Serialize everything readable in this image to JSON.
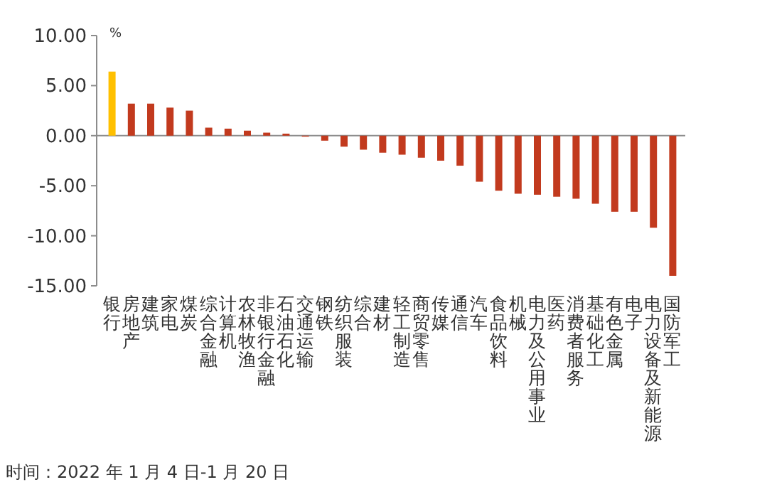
{
  "chart_data": {
    "type": "bar",
    "ylabel": "%",
    "categories": [
      "银行",
      "房地产",
      "建筑",
      "家电",
      "煤炭",
      "综合金融",
      "计算机",
      "农林牧渔",
      "非银行金融",
      "石油石化",
      "交通运输",
      "钢铁",
      "纺织服装",
      "综合",
      "建材",
      "轻工制造",
      "商贸零售",
      "传媒",
      "通信",
      "汽车",
      "食品饮料",
      "机械",
      "电力及公用事业",
      "医药",
      "消费者服务",
      "基础化工",
      "有色金属",
      "电子",
      "电力设备及新能源",
      "国防军工"
    ],
    "values": [
      6.4,
      3.2,
      3.2,
      2.8,
      2.5,
      0.8,
      0.7,
      0.5,
      0.3,
      0.2,
      -0.1,
      -0.5,
      -1.1,
      -1.4,
      -1.7,
      -1.9,
      -2.2,
      -2.5,
      -3.0,
      -4.6,
      -5.5,
      -5.8,
      -5.9,
      -6.1,
      -6.3,
      -6.8,
      -7.6,
      -7.6,
      -9.2,
      -14.0
    ],
    "colors": [
      "#ffc000",
      "#c23a1e",
      "#c23a1e",
      "#c23a1e",
      "#c23a1e",
      "#c23a1e",
      "#c23a1e",
      "#c23a1e",
      "#c23a1e",
      "#c23a1e",
      "#c23a1e",
      "#c23a1e",
      "#c23a1e",
      "#c23a1e",
      "#c23a1e",
      "#c23a1e",
      "#c23a1e",
      "#c23a1e",
      "#c23a1e",
      "#c23a1e",
      "#c23a1e",
      "#c23a1e",
      "#c23a1e",
      "#c23a1e",
      "#c23a1e",
      "#c23a1e",
      "#c23a1e",
      "#c23a1e",
      "#c23a1e",
      "#c23a1e"
    ],
    "ylim": [
      -15,
      10
    ],
    "yticks": [
      {
        "value": 10,
        "label": "10.00"
      },
      {
        "value": 5,
        "label": "5.00"
      },
      {
        "value": 0,
        "label": "0.00"
      },
      {
        "value": -5,
        "label": "-5.00"
      },
      {
        "value": -10,
        "label": "-10.00"
      },
      {
        "value": -15,
        "label": "-15.00"
      }
    ],
    "annotations": [
      "时间：2022 年 1 月 4 日-1 月 20 日"
    ]
  }
}
